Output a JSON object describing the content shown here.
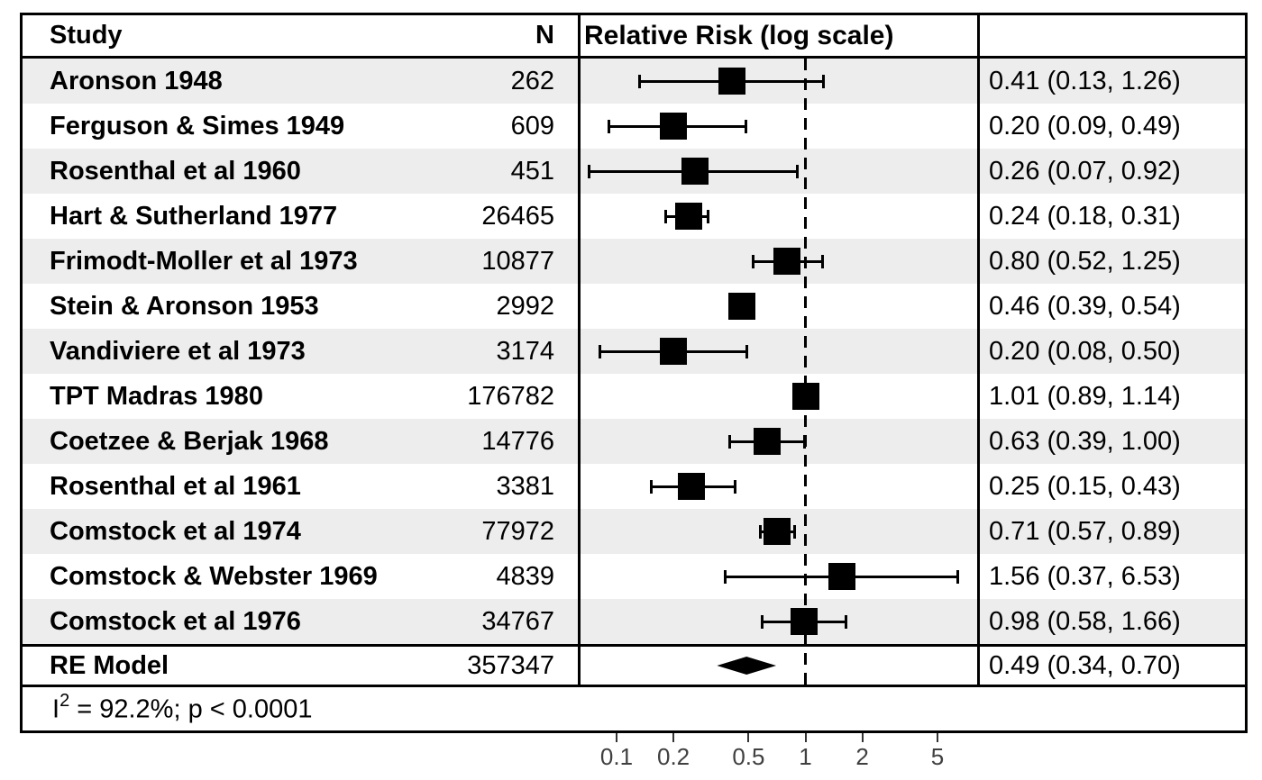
{
  "header": {
    "study": "Study",
    "n": "N",
    "plot": "Relative Risk (log scale)",
    "ci": ""
  },
  "footer": {
    "het_base": "I",
    "het_sup": "2",
    "het_rest": " = 92.2%; p < 0.0001"
  },
  "axis": {
    "tick_labels": [
      "0.1",
      "0.2",
      "0.5",
      "1",
      "2",
      "5"
    ]
  },
  "colors": {
    "stripe": "#ededed",
    "marker": "#000000",
    "border": "#000000",
    "axis_label": "#404040"
  },
  "chart_data": {
    "type": "scatter",
    "variant": "forest_plot_meta_analysis",
    "title": "Relative Risk (log scale)",
    "x_scale": "log10",
    "x_ticks": [
      0.1,
      0.2,
      0.5,
      1,
      2,
      5
    ],
    "x_range_approx": [
      0.062,
      7.5
    ],
    "reference_line": 1,
    "grid": false,
    "legend_position": "none",
    "studies": [
      {
        "study": "Aronson 1948",
        "n": 262,
        "rr": 0.41,
        "ci_low": 0.13,
        "ci_high": 1.26,
        "label": "0.41 (0.13, 1.26)"
      },
      {
        "study": "Ferguson & Simes 1949",
        "n": 609,
        "rr": 0.2,
        "ci_low": 0.09,
        "ci_high": 0.49,
        "label": "0.20 (0.09, 0.49)"
      },
      {
        "study": "Rosenthal et al 1960",
        "n": 451,
        "rr": 0.26,
        "ci_low": 0.07,
        "ci_high": 0.92,
        "label": "0.26 (0.07, 0.92)"
      },
      {
        "study": "Hart & Sutherland 1977",
        "n": 26465,
        "rr": 0.24,
        "ci_low": 0.18,
        "ci_high": 0.31,
        "label": "0.24 (0.18, 0.31)"
      },
      {
        "study": "Frimodt-Moller et al 1973",
        "n": 10877,
        "rr": 0.8,
        "ci_low": 0.52,
        "ci_high": 1.25,
        "label": "0.80 (0.52, 1.25)"
      },
      {
        "study": "Stein & Aronson 1953",
        "n": 2992,
        "rr": 0.46,
        "ci_low": 0.39,
        "ci_high": 0.54,
        "label": "0.46 (0.39, 0.54)"
      },
      {
        "study": "Vandiviere et al 1973",
        "n": 3174,
        "rr": 0.2,
        "ci_low": 0.08,
        "ci_high": 0.5,
        "label": "0.20 (0.08, 0.50)"
      },
      {
        "study": "TPT Madras 1980",
        "n": 176782,
        "rr": 1.01,
        "ci_low": 0.89,
        "ci_high": 1.14,
        "label": "1.01 (0.89, 1.14)"
      },
      {
        "study": "Coetzee & Berjak 1968",
        "n": 14776,
        "rr": 0.63,
        "ci_low": 0.39,
        "ci_high": 1.0,
        "label": "0.63 (0.39, 1.00)"
      },
      {
        "study": "Rosenthal et al 1961",
        "n": 3381,
        "rr": 0.25,
        "ci_low": 0.15,
        "ci_high": 0.43,
        "label": "0.25 (0.15, 0.43)"
      },
      {
        "study": "Comstock et al 1974",
        "n": 77972,
        "rr": 0.71,
        "ci_low": 0.57,
        "ci_high": 0.89,
        "label": "0.71 (0.57, 0.89)"
      },
      {
        "study": "Comstock & Webster 1969",
        "n": 4839,
        "rr": 1.56,
        "ci_low": 0.37,
        "ci_high": 6.53,
        "label": "1.56 (0.37, 6.53)"
      },
      {
        "study": "Comstock et al 1976",
        "n": 34767,
        "rr": 0.98,
        "ci_low": 0.58,
        "ci_high": 1.66,
        "label": "0.98 (0.58, 1.66)"
      }
    ],
    "summary": {
      "study": "RE Model",
      "n": 357347,
      "rr": 0.49,
      "ci_low": 0.34,
      "ci_high": 0.7,
      "label": "0.49 (0.34, 0.70)",
      "marker": "diamond"
    },
    "heterogeneity_label": "I2 = 92.2%; p < 0.0001"
  }
}
